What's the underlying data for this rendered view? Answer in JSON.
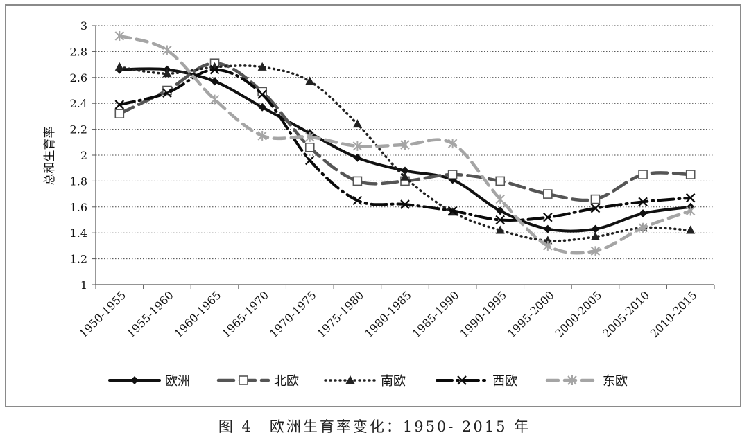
{
  "caption": "图 4　欧洲生育率变化：1950- 2015 年",
  "chart_data": {
    "type": "line",
    "title": "",
    "xlabel": "",
    "ylabel": "总和生育率",
    "ylim": [
      1,
      3
    ],
    "yticks": [
      "1",
      "1.2",
      "1.4",
      "1.6",
      "1.8",
      "2",
      "2.2",
      "2.4",
      "2.6",
      "2.8",
      "3"
    ],
    "grid": "horizontal dotted",
    "legend_position": "bottom",
    "categories": [
      "1950-1955",
      "1955-1960",
      "1960-1965",
      "1965-1970",
      "1970-1975",
      "1975-1980",
      "1980-1985",
      "1985-1990",
      "1990-1995",
      "1995-2000",
      "2000-2005",
      "2005-2010",
      "2010-2015"
    ],
    "series": [
      {
        "name": "欧洲",
        "values": [
          2.66,
          2.66,
          2.57,
          2.37,
          2.17,
          1.98,
          1.88,
          1.81,
          1.57,
          1.43,
          1.43,
          1.55,
          1.6
        ],
        "color": "#111111",
        "style": "solid",
        "marker": "diamond"
      },
      {
        "name": "北欧",
        "values": [
          2.32,
          2.5,
          2.71,
          2.49,
          2.06,
          1.8,
          1.8,
          1.85,
          1.8,
          1.7,
          1.66,
          1.85,
          1.85
        ],
        "color": "#555555",
        "style": "long-dash",
        "marker": "open-square"
      },
      {
        "name": "南欧",
        "values": [
          2.68,
          2.63,
          2.68,
          2.68,
          2.57,
          2.24,
          1.83,
          1.56,
          1.42,
          1.34,
          1.37,
          1.44,
          1.42
        ],
        "color": "#222222",
        "style": "dotted",
        "marker": "triangle"
      },
      {
        "name": "西欧",
        "values": [
          2.39,
          2.48,
          2.66,
          2.47,
          1.96,
          1.65,
          1.62,
          1.57,
          1.5,
          1.52,
          1.59,
          1.64,
          1.67
        ],
        "color": "#0a0a0a",
        "style": "long-dash-dot",
        "marker": "x"
      },
      {
        "name": "东欧",
        "values": [
          2.92,
          2.81,
          2.43,
          2.15,
          2.14,
          2.07,
          2.08,
          2.09,
          1.66,
          1.3,
          1.26,
          1.44,
          1.57
        ],
        "color": "#a5a5a5",
        "style": "dash",
        "marker": "asterisk"
      }
    ]
  }
}
